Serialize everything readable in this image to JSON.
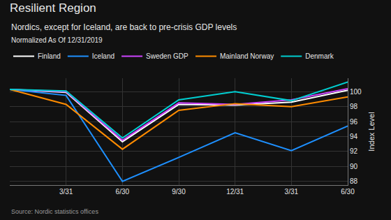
{
  "chart_data": {
    "type": "line",
    "title": "Resilient Region",
    "subtitle": "Nordics, except for Iceland, are back to pre-crisis GDP levels",
    "annotations": [
      "Normalized As Of 12/31/2019",
      "Source: Nordic statistics offices"
    ],
    "categories": [
      null,
      "3/31",
      "6/30",
      "9/30",
      "12/31",
      "3/31",
      "6/30"
    ],
    "series": [
      {
        "name": "Finland",
        "color": "#ffffff",
        "values": [
          100.3,
          99.9,
          93.3,
          98.3,
          98.2,
          98.6,
          100.2
        ]
      },
      {
        "name": "Iceland",
        "color": "#1e90ff",
        "values": [
          100.3,
          99.5,
          88.0,
          91.2,
          94.5,
          92.1,
          95.4
        ]
      },
      {
        "name": "Sweden GDP",
        "color": "#cc44ff",
        "values": [
          100.3,
          100.0,
          93.5,
          98.5,
          98.3,
          98.9,
          100.4
        ]
      },
      {
        "name": "Mainland Norway",
        "color": "#ff8c00",
        "values": [
          100.3,
          98.3,
          92.3,
          97.5,
          98.4,
          98.0,
          99.3
        ]
      },
      {
        "name": "Denmark",
        "color": "#00ced1",
        "values": [
          100.3,
          100.1,
          93.8,
          98.9,
          100.0,
          98.8,
          101.3
        ]
      }
    ],
    "ylabel": "Index Level",
    "ylim": [
      87.5,
      101.8
    ],
    "yticks": [
      88,
      90,
      92,
      94,
      96,
      98,
      100
    ],
    "grid": true
  }
}
